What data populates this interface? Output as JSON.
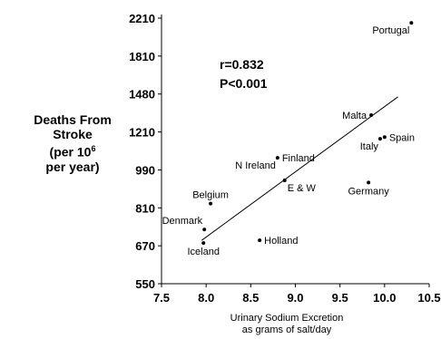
{
  "chart_data": {
    "type": "scatter",
    "title": "",
    "xlabel_lines": [
      "Urinary Sodium Excretion",
      "as grams of salt/day"
    ],
    "ylabel": {
      "line1": "Deaths From",
      "line2": "Stroke",
      "line3_prefix": "(per 10",
      "line3_sup": "6",
      "line4": "per year)"
    },
    "xlim": [
      7.5,
      10.5
    ],
    "ylim": [
      550,
      2210
    ],
    "x_ticks": [
      "7.5",
      "8.0",
      "8.5",
      "9.0",
      "9.5",
      "10.0",
      "10.5"
    ],
    "x_tick_values": [
      7.5,
      8.0,
      8.5,
      9.0,
      9.5,
      10.0,
      10.5
    ],
    "y_ticks": [
      "550",
      "670",
      "810",
      "990",
      "1210",
      "1480",
      "1810",
      "2210"
    ],
    "y_tick_values": [
      550,
      670,
      810,
      990,
      1210,
      1480,
      1810,
      2210
    ],
    "annotations": {
      "r": "r=0.832",
      "p": "P<0.001"
    },
    "points": [
      {
        "label": "Portugal",
        "x": 10.3,
        "y": 2160,
        "label_pos": "below-left"
      },
      {
        "label": "Malta",
        "x": 9.85,
        "y": 1330,
        "label_pos": "left"
      },
      {
        "label": "Spain",
        "x": 10.0,
        "y": 1180,
        "label_pos": "right"
      },
      {
        "label": "Italy",
        "x": 9.95,
        "y": 1170,
        "label_pos": "below-left"
      },
      {
        "label": "Finland",
        "x": 8.8,
        "y": 1060,
        "label_pos": "right"
      },
      {
        "label": "N Ireland",
        "x": 8.8,
        "y": 1060,
        "label_pos": "below-left"
      },
      {
        "label": "E & W",
        "x": 8.88,
        "y": 940,
        "label_pos": "below-right"
      },
      {
        "label": "Germany",
        "x": 9.82,
        "y": 930,
        "label_pos": "below"
      },
      {
        "label": "Belgium",
        "x": 8.05,
        "y": 830,
        "label_pos": "above"
      },
      {
        "label": "Denmark",
        "x": 7.98,
        "y": 730,
        "label_pos": "above-left"
      },
      {
        "label": "Iceland",
        "x": 7.97,
        "y": 680,
        "label_pos": "below"
      },
      {
        "label": "Holland",
        "x": 8.6,
        "y": 690,
        "label_pos": "right"
      }
    ],
    "regression_line": {
      "x": [
        7.95,
        10.15
      ],
      "y": [
        690,
        1460
      ]
    }
  }
}
